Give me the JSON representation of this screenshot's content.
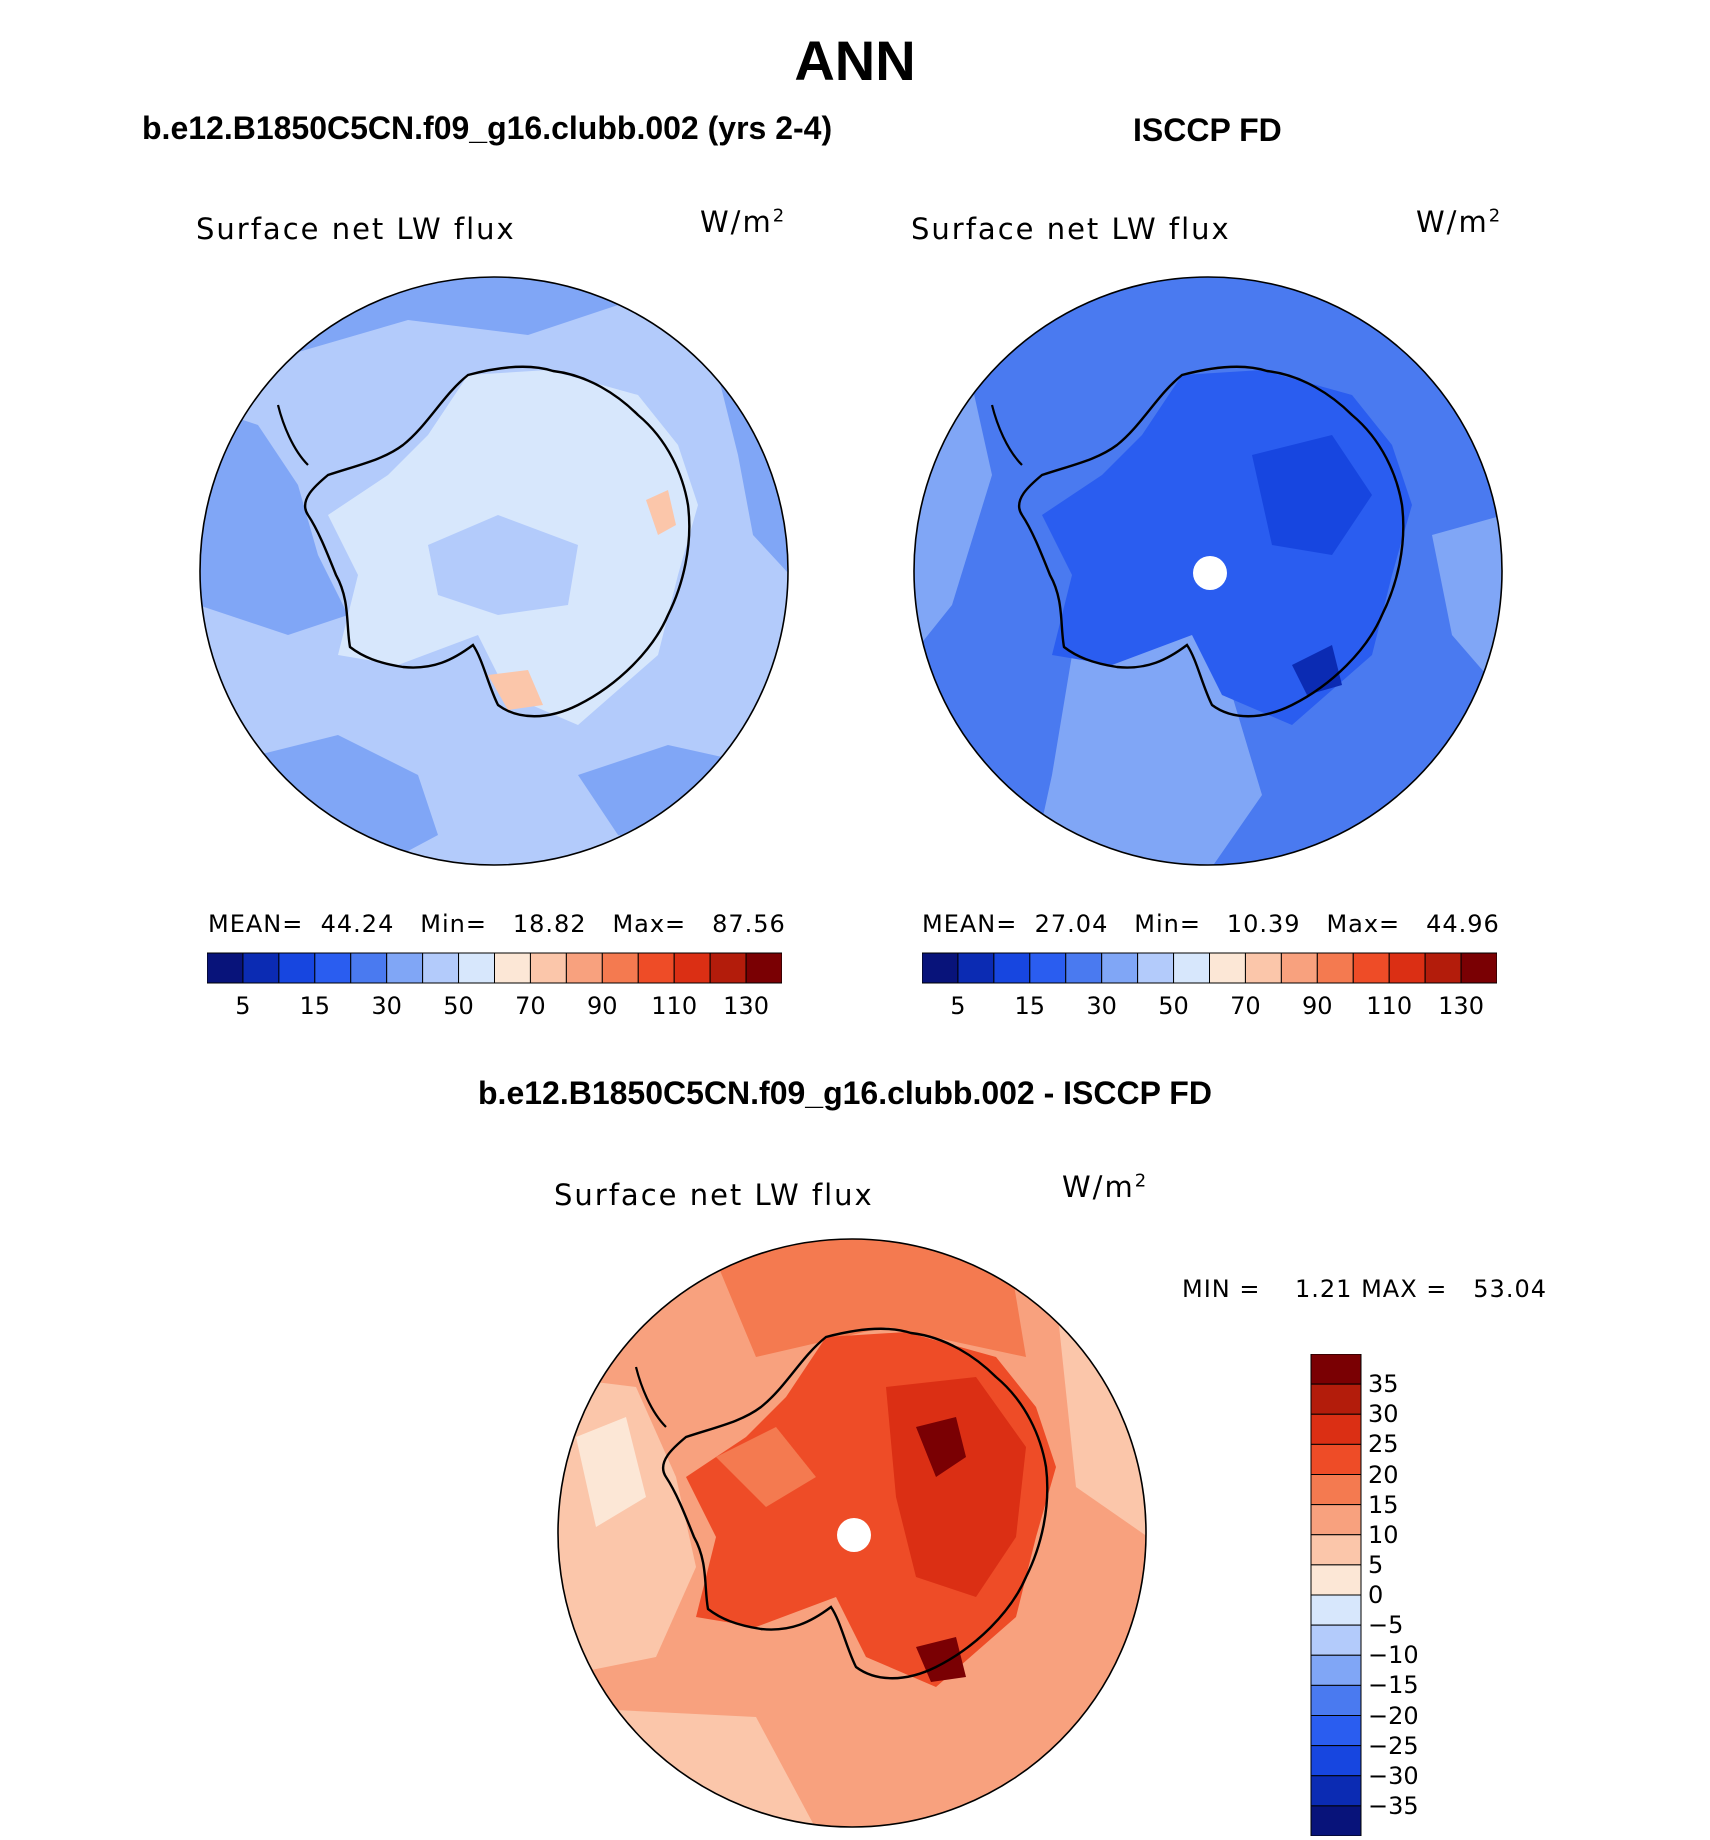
{
  "main_title": "ANN",
  "panels": {
    "top_left": {
      "title": "b.e12.B1850C5CN.f09_g16.clubb.002 (yrs 2-4)",
      "variable": "Surface net LW flux",
      "units": "W/m",
      "units_exp": "2",
      "mean_label": "MEAN=",
      "mean": "44.24",
      "min_label": "Min=",
      "min": "18.82",
      "max_label": "Max=",
      "max": "87.56"
    },
    "top_right": {
      "title": "ISCCP FD",
      "variable": "Surface net LW flux",
      "units": "W/m",
      "units_exp": "2",
      "mean_label": "MEAN=",
      "mean": "27.04",
      "min_label": "Min=",
      "min": "10.39",
      "max_label": "Max=",
      "max": "44.96"
    },
    "bottom": {
      "title": "b.e12.B1850C5CN.f09_g16.clubb.002 - ISCCP FD",
      "variable": "Surface net LW flux",
      "units": "W/m",
      "units_exp": "2",
      "min_label": "MIN =",
      "min": "1.21",
      "max_label": "MAX =",
      "max": "53.04"
    }
  },
  "chart_data": [
    {
      "type": "heatmap",
      "projection": "south-polar stereographic",
      "title": "b.e12.B1850C5CN.f09_g16.clubb.002 (yrs 2-4)",
      "variable": "Surface net LW flux",
      "units": "W/m2",
      "stats": {
        "mean": 44.24,
        "min": 18.82,
        "max": 87.56
      },
      "colorbar_levels": [
        0,
        5,
        10,
        15,
        20,
        30,
        40,
        50,
        60,
        70,
        80,
        90,
        100,
        110,
        120,
        130,
        140
      ],
      "colorbar_tick_labels": [
        "5",
        "15",
        "30",
        "50",
        "70",
        "90",
        "110",
        "130"
      ],
      "colorbar_colors": [
        "#08137a",
        "#0b2bb3",
        "#1746e0",
        "#2a5df0",
        "#4a7af0",
        "#80a6f6",
        "#b3cbfb",
        "#d7e7fc",
        "#fce7d6",
        "#fbc6aa",
        "#f8a17e",
        "#f47a50",
        "#ee4c27",
        "#db2f14",
        "#b31c0b",
        "#7a0003"
      ],
      "field_summary": {
        "ocean": 50,
        "open_ocean_patches": 40,
        "interior": 60,
        "coastal_hotspots": 75
      }
    },
    {
      "type": "heatmap",
      "projection": "south-polar stereographic",
      "title": "ISCCP FD",
      "variable": "Surface net LW flux",
      "units": "W/m2",
      "stats": {
        "mean": 27.04,
        "min": 10.39,
        "max": 44.96
      },
      "colorbar_levels": [
        0,
        5,
        10,
        15,
        20,
        30,
        40,
        50,
        60,
        70,
        80,
        90,
        100,
        110,
        120,
        130,
        140
      ],
      "colorbar_tick_labels": [
        "5",
        "15",
        "30",
        "50",
        "70",
        "90",
        "110",
        "130"
      ],
      "field_summary": {
        "ocean": 30,
        "outer_ocean": 40,
        "interior": 20,
        "interior_minimum": 15
      }
    },
    {
      "type": "heatmap",
      "projection": "south-polar stereographic",
      "title": "b.e12.B1850C5CN.f09_g16.clubb.002 - ISCCP FD",
      "variable": "Surface net LW flux",
      "units": "W/m2",
      "stats": {
        "min": 1.21,
        "max": 53.04
      },
      "colorbar_levels": [
        -40,
        -35,
        -30,
        -25,
        -20,
        -15,
        -10,
        -5,
        0,
        5,
        10,
        15,
        20,
        25,
        30,
        35,
        40
      ],
      "colorbar_tick_labels": [
        "35",
        "30",
        "25",
        "20",
        "15",
        "10",
        "5",
        "0",
        "−5",
        "−10",
        "−15",
        "−20",
        "−25",
        "−30",
        "−35"
      ],
      "colorbar_colors_top_to_bottom": [
        "#7a0003",
        "#b31c0b",
        "#db2f14",
        "#ee4c27",
        "#f47a50",
        "#f8a17e",
        "#fbc6aa",
        "#fce7d6",
        "#d7e7fc",
        "#b3cbfb",
        "#80a6f6",
        "#4a7af0",
        "#2a5df0",
        "#1746e0",
        "#0b2bb3",
        "#08137a"
      ],
      "field_summary": {
        "ocean": 15,
        "west_ocean": 5,
        "interior": 25,
        "interior_max": 35
      }
    }
  ]
}
